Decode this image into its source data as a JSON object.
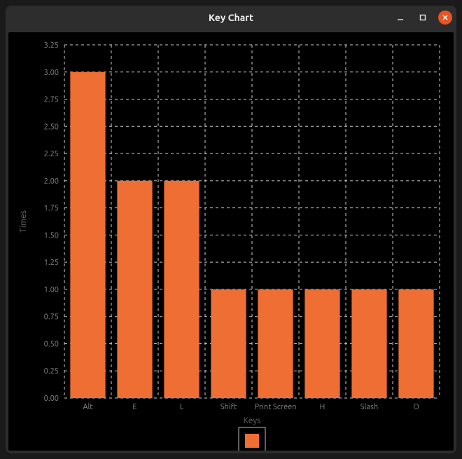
{
  "window": {
    "title": "Key Chart"
  },
  "chart": {
    "type": "bar",
    "categories": [
      "Alt",
      "E",
      "L",
      "Shift",
      "Print Screen",
      "H",
      "Slash",
      "O"
    ],
    "values": [
      3,
      2,
      2,
      1,
      1,
      1,
      1,
      1
    ],
    "bar_color": "#ee6e33",
    "background_color": "#000000",
    "grid_color": "#cccccc",
    "tick_color": "#888888",
    "xlabel": "Keys",
    "ylabel": "Times",
    "label_color": "#666666",
    "ylim": [
      0,
      3.25
    ],
    "ytick_step": 0.25,
    "label_fontsize": 12,
    "tick_fontsize": 11,
    "bar_width": 0.75
  }
}
